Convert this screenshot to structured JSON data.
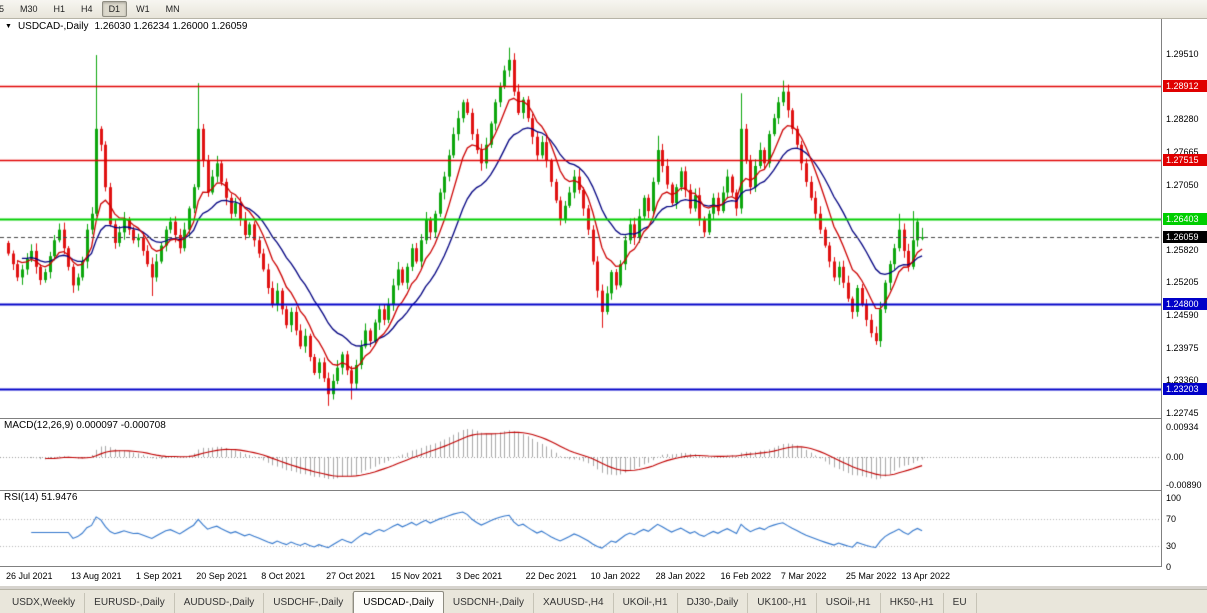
{
  "toolbar": {
    "periods": [
      {
        "label": "5",
        "cut": true,
        "active": false
      },
      {
        "label": "M30",
        "active": false
      },
      {
        "label": "H1",
        "active": false
      },
      {
        "label": "H4",
        "active": false
      },
      {
        "label": "D1",
        "active": true
      },
      {
        "label": "W1",
        "active": false
      },
      {
        "label": "MN",
        "active": false
      }
    ]
  },
  "chart": {
    "collapse_icon": "▼",
    "symbol": "USDCAD-,Daily",
    "ohlc": "1.26030 1.26234 1.26000 1.26059"
  },
  "chart_data": {
    "type": "candlestick",
    "symbol": "USDCAD",
    "timeframe": "Daily",
    "current_bar": {
      "open": 1.2603,
      "high": 1.26234,
      "low": 1.26,
      "close": 1.26059
    },
    "first_open": 1.2595,
    "closes": [
      1.2575,
      1.2555,
      1.253,
      1.2545,
      1.2565,
      1.258,
      1.255,
      1.2525,
      1.254,
      1.257,
      1.26,
      1.262,
      1.2585,
      1.255,
      1.2515,
      1.253,
      1.256,
      1.262,
      1.265,
      1.281,
      1.278,
      1.27,
      1.263,
      1.2595,
      1.2615,
      1.264,
      1.262,
      1.26,
      1.2605,
      1.258,
      1.2555,
      1.253,
      1.256,
      1.259,
      1.262,
      1.2635,
      1.261,
      1.2585,
      1.262,
      1.266,
      1.27,
      1.281,
      1.275,
      1.269,
      1.272,
      1.2745,
      1.271,
      1.268,
      1.265,
      1.267,
      1.264,
      1.261,
      1.263,
      1.26,
      1.2575,
      1.2545,
      1.251,
      1.248,
      1.2505,
      1.247,
      1.244,
      1.2465,
      1.243,
      1.24,
      1.242,
      1.238,
      1.235,
      1.237,
      1.234,
      1.231,
      1.2335,
      1.236,
      1.2385,
      1.2355,
      1.233,
      1.2365,
      1.24,
      1.243,
      1.241,
      1.2445,
      1.247,
      1.245,
      1.248,
      1.2515,
      1.2545,
      1.252,
      1.255,
      1.2585,
      1.256,
      1.26,
      1.264,
      1.2615,
      1.265,
      1.269,
      1.272,
      1.276,
      1.28,
      1.283,
      1.286,
      1.284,
      1.28,
      1.277,
      1.2745,
      1.278,
      1.282,
      1.286,
      1.289,
      1.292,
      1.294,
      1.288,
      1.284,
      1.2865,
      1.283,
      1.2795,
      1.276,
      1.2785,
      1.275,
      1.271,
      1.2675,
      1.264,
      1.2665,
      1.269,
      1.272,
      1.2695,
      1.266,
      1.262,
      1.256,
      1.2505,
      1.2465,
      1.25,
      1.254,
      1.2515,
      1.2555,
      1.26,
      1.263,
      1.2605,
      1.2645,
      1.268,
      1.2655,
      1.271,
      1.277,
      1.274,
      1.2705,
      1.267,
      1.27,
      1.273,
      1.2695,
      1.266,
      1.2685,
      1.264,
      1.2615,
      1.265,
      1.268,
      1.2655,
      1.269,
      1.272,
      1.269,
      1.266,
      1.281,
      1.275,
      1.27,
      1.274,
      1.277,
      1.2745,
      1.28,
      1.283,
      1.286,
      1.288,
      1.2845,
      1.281,
      1.278,
      1.2745,
      1.271,
      1.268,
      1.265,
      1.262,
      1.259,
      1.256,
      1.253,
      1.255,
      1.252,
      1.249,
      1.2465,
      1.251,
      1.248,
      1.245,
      1.2425,
      1.241,
      1.247,
      1.252,
      1.2555,
      1.2585,
      1.262,
      1.258,
      1.255,
      1.26,
      1.2635,
      1.26059
    ],
    "overrides": {
      "19": {
        "h": 1.2949
      },
      "31": {
        "l": 1.2495
      },
      "41": {
        "h": 1.2896
      },
      "69": {
        "l": 1.2288
      },
      "74": {
        "l": 1.23
      },
      "108": {
        "h": 1.2963
      },
      "128": {
        "l": 1.2435
      },
      "140": {
        "h": 1.2797
      },
      "158": {
        "h": 1.2877
      },
      "167": {
        "h": 1.2901
      },
      "187": {
        "l": 1.2403
      },
      "192": {
        "h": 1.265
      },
      "195": {
        "h": 1.2655
      },
      "197": {
        "o": 1.2603,
        "h": 1.26234,
        "l": 1.26
      }
    },
    "price_axis_ticks": [
      1.2951,
      1.28895,
      1.2828,
      1.27665,
      1.2705,
      1.26435,
      1.2582,
      1.25205,
      1.2459,
      1.23975,
      1.2336,
      1.22745
    ],
    "levels": [
      {
        "price": 1.28912,
        "color": "#e00000",
        "lw": 1.5
      },
      {
        "price": 1.27515,
        "color": "#e00000",
        "lw": 1.5
      },
      {
        "price": 1.26403,
        "color": "#00ce00",
        "lw": 2
      },
      {
        "price": 1.248,
        "color": "#0000c8",
        "lw": 2
      },
      {
        "price": 1.23203,
        "color": "#0000c8",
        "lw": 2
      }
    ],
    "current_price_line": {
      "price": 1.26059,
      "label": "1.26059"
    },
    "date_labels": [
      {
        "i": 0,
        "label": "26 Jul 2021"
      },
      {
        "i": 14,
        "label": "13 Aug 2021"
      },
      {
        "i": 28,
        "label": "1 Sep 2021"
      },
      {
        "i": 41,
        "label": "20 Sep 2021"
      },
      {
        "i": 55,
        "label": "8 Oct 2021"
      },
      {
        "i": 69,
        "label": "27 Oct 2021"
      },
      {
        "i": 83,
        "label": "15 Nov 2021"
      },
      {
        "i": 97,
        "label": "3 Dec 2021"
      },
      {
        "i": 112,
        "label": "22 Dec 2021"
      },
      {
        "i": 126,
        "label": "10 Jan 2022"
      },
      {
        "i": 140,
        "label": "28 Jan 2022"
      },
      {
        "i": 154,
        "label": "16 Feb 2022"
      },
      {
        "i": 167,
        "label": "7 Mar 2022"
      },
      {
        "i": 181,
        "label": "25 Mar 2022"
      },
      {
        "i": 193,
        "label": "13 Apr 2022"
      }
    ],
    "macd": {
      "label": "MACD(12,26,9) 0.000097 -0.000708",
      "params": [
        12,
        26,
        9
      ],
      "values": [
        9.7e-05,
        -0.000708
      ],
      "axis_labels": [
        "0.00934",
        "0.00",
        "-0.00890"
      ]
    },
    "rsi": {
      "label": "RSI(14) 51.9476",
      "period": 14,
      "value": 51.9476,
      "axis_labels": [
        "100",
        "70",
        "30",
        "0"
      ],
      "levels": [
        70,
        30
      ]
    }
  },
  "tabs": {
    "items": [
      {
        "label": "USDX,Weekly",
        "active": false
      },
      {
        "label": "EURUSD-,Daily",
        "active": false
      },
      {
        "label": "AUDUSD-,Daily",
        "active": false
      },
      {
        "label": "USDCHF-,Daily",
        "active": false
      },
      {
        "label": "USDCAD-,Daily",
        "active": true
      },
      {
        "label": "USDCNH-,Daily",
        "active": false
      },
      {
        "label": "XAUUSD-,H4",
        "active": false
      },
      {
        "label": "UKOil-,H1",
        "active": false
      },
      {
        "label": "DJ30-,Daily",
        "active": false
      },
      {
        "label": "UK100-,H1",
        "active": false
      },
      {
        "label": "USOil-,H1",
        "active": false
      },
      {
        "label": "HK50-,H1",
        "active": false
      },
      {
        "label": "EU",
        "active": false
      }
    ]
  },
  "colors": {
    "candle_up": "#0da60d",
    "candle_down": "#e01212",
    "ma_fast": "#cc0000",
    "ma_slow": "#000080",
    "macd_hist": "#a8a8a8",
    "macd_signal": "#c00000",
    "rsi_line": "#3377cc",
    "current_price_chip": "#000000"
  }
}
